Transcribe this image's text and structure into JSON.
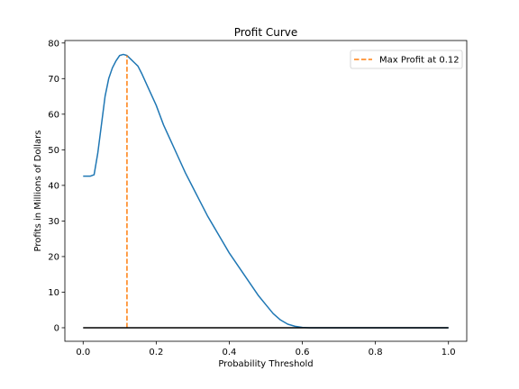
{
  "chart_data": {
    "type": "line",
    "title": "Profit Curve",
    "xlabel": "Probability Threshold",
    "ylabel": "Profits in Millions of Dollars",
    "xlim": [
      -0.05,
      1.05
    ],
    "ylim": [
      -3.8,
      80.7
    ],
    "xticks": [
      0.0,
      0.2,
      0.4,
      0.6,
      0.8,
      1.0
    ],
    "xtick_labels": [
      "0.0",
      "0.2",
      "0.4",
      "0.6",
      "0.8",
      "1.0"
    ],
    "yticks": [
      0,
      10,
      20,
      30,
      40,
      50,
      60,
      70,
      80
    ],
    "ytick_labels": [
      "0",
      "10",
      "20",
      "30",
      "40",
      "50",
      "60",
      "70",
      "80"
    ],
    "grid": false,
    "legend": {
      "position": "top-right",
      "entries": [
        "Max Profit at 0.12"
      ]
    },
    "series": [
      {
        "color": "#1f77b4",
        "x": [
          0.0,
          0.01,
          0.02,
          0.03,
          0.04,
          0.05,
          0.06,
          0.07,
          0.08,
          0.09,
          0.1,
          0.11,
          0.12,
          0.13,
          0.14,
          0.15,
          0.16,
          0.18,
          0.2,
          0.22,
          0.24,
          0.26,
          0.28,
          0.3,
          0.32,
          0.34,
          0.36,
          0.38,
          0.4,
          0.42,
          0.44,
          0.46,
          0.48,
          0.5,
          0.52,
          0.54,
          0.56,
          0.58,
          0.6,
          0.62,
          0.65,
          0.7,
          0.8,
          0.9,
          1.0
        ],
        "y": [
          42.6,
          42.6,
          42.6,
          43.0,
          49.0,
          57.0,
          65.0,
          70.0,
          73.0,
          75.0,
          76.5,
          76.8,
          76.5,
          75.5,
          74.5,
          73.5,
          71.5,
          67.0,
          62.5,
          57.0,
          52.5,
          48.0,
          43.5,
          39.5,
          35.5,
          31.5,
          28.0,
          24.5,
          21.0,
          18.0,
          15.0,
          12.0,
          9.0,
          6.5,
          4.0,
          2.2,
          1.0,
          0.4,
          0.1,
          0.0,
          0.0,
          0.0,
          0.0,
          0.0,
          0.0
        ]
      },
      {
        "color": "#000000",
        "x": [
          0.0,
          1.0
        ],
        "y": [
          0.0,
          0.0
        ]
      }
    ],
    "marker_line": {
      "x": 0.12,
      "y": [
        0.0,
        76.5
      ],
      "color": "#ff7f0e",
      "style": "dashed"
    }
  }
}
